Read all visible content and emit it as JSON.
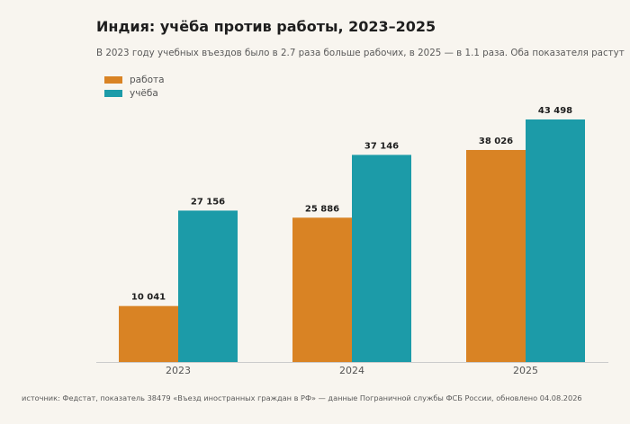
{
  "chart_data": {
    "type": "bar",
    "title": "Индия: учёба против работы, 2023–2025",
    "subtitle": "В 2023 году учебных въездов было в 2.7 раза больше рабочих, в 2025 — в 1.1 раза. Оба показателя растут",
    "categories": [
      "2023",
      "2024",
      "2025"
    ],
    "series": [
      {
        "name": "работа",
        "color": "#d98324",
        "values": [
          10041,
          25886,
          38026
        ],
        "labels": [
          "10 041",
          "25 886",
          "38 026"
        ]
      },
      {
        "name": "учёба",
        "color": "#1c9ba8",
        "values": [
          27156,
          37146,
          43498
        ],
        "labels": [
          "27 156",
          "37 146",
          "43 498"
        ]
      }
    ],
    "ylim": [
      0,
      45000
    ],
    "grid": false,
    "legend": "top-left",
    "source": "источник: Федстат, показатель 38479 «Въезд иностранных граждан в РФ» — данные Пограничной службы ФСБ России, обновлено 04.08.2026"
  }
}
